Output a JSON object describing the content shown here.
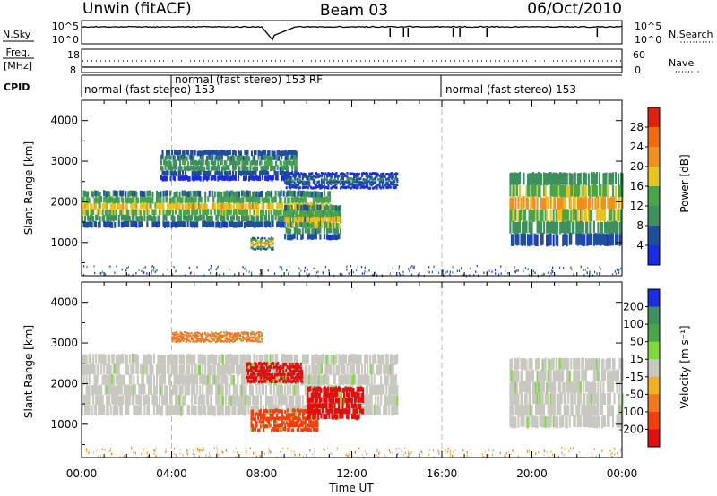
{
  "header": {
    "title_left": "Unwin (fitACF)",
    "title_center": "Beam 03",
    "title_right": "06/Oct/2010"
  },
  "noise_panel": {
    "left_label": "N.Sky",
    "right_label": "N.Search",
    "left_ticks": [
      "10^5",
      "10^0"
    ],
    "right_ticks": [
      "10^5",
      "10^0"
    ],
    "series": [
      {
        "name": "N.Sky",
        "line": "solid"
      },
      {
        "name": "N.Search",
        "line": "dotted"
      }
    ]
  },
  "freq_panel": {
    "left_label_1": "Freq.",
    "left_label_2": "[MHz]",
    "right_label": "Nave",
    "left_ticks": [
      "18",
      "8"
    ],
    "right_ticks": [
      "60",
      "0"
    ],
    "series": [
      {
        "name": "Freq.",
        "line": "solid",
        "value": 10.5
      },
      {
        "name": "Nave",
        "line": "dotted",
        "value": 30
      }
    ]
  },
  "cpid": {
    "label": "CPID",
    "segments": [
      {
        "label": "normal (fast stereo) 153",
        "start_hour": 0,
        "end_hour": 4.0
      },
      {
        "label": "normal (fast stereo) 153 RF",
        "start_hour": 4.0,
        "end_hour": 16.0
      },
      {
        "label": "normal (fast stereo) 153",
        "start_hour": 16.0,
        "end_hour": 24.0
      }
    ]
  },
  "chart_data": [
    {
      "type": "heatmap",
      "ylabel": "Slant Range [km]",
      "xlabel": "",
      "xlim_hours": [
        0,
        24
      ],
      "ylim": [
        180,
        4500
      ],
      "yticks": [
        1000,
        2000,
        3000,
        4000
      ],
      "ytick_labels": [
        "1000",
        "2000",
        "3000",
        "4000"
      ],
      "colorbar": {
        "label": "Power [dB]",
        "tick_labels": [
          "4",
          "8",
          "12",
          "16",
          "20",
          "24",
          "28"
        ],
        "colors": [
          "#1b2de0",
          "#1f4e9c",
          "#3f8f5f",
          "#4aa54a",
          "#e8c21e",
          "#f09020",
          "#f06a10",
          "#e02010"
        ]
      },
      "echo_bands": [
        {
          "start_hour": 0.0,
          "end_hour": 11.0,
          "range_start_km": 1350,
          "range_end_km": 2250,
          "peak_db": 22
        },
        {
          "start_hour": 3.5,
          "end_hour": 9.5,
          "range_start_km": 2500,
          "range_end_km": 3250,
          "peak_db": 14
        },
        {
          "start_hour": 7.5,
          "end_hour": 8.5,
          "range_start_km": 800,
          "range_end_km": 1100,
          "peak_db": 26
        },
        {
          "start_hour": 9.0,
          "end_hour": 11.5,
          "range_start_km": 1050,
          "range_end_km": 1900,
          "peak_db": 22
        },
        {
          "start_hour": 9.0,
          "end_hour": 14.0,
          "range_start_km": 2300,
          "range_end_km": 2700,
          "peak_db": 10
        },
        {
          "start_hour": 19.0,
          "end_hour": 24.0,
          "range_start_km": 900,
          "range_end_km": 2700,
          "peak_db": 24
        }
      ]
    },
    {
      "type": "heatmap",
      "ylabel": "Slant Range [km]",
      "xlabel": "Time UT",
      "xlim_hours": [
        0,
        24
      ],
      "ylim": [
        180,
        4500
      ],
      "yticks": [
        1000,
        2000,
        3000,
        4000
      ],
      "ytick_labels": [
        "1000",
        "2000",
        "3000",
        "4000"
      ],
      "xticks_hours": [
        0,
        4,
        8,
        12,
        16,
        20,
        24
      ],
      "xtick_labels": [
        "00:00",
        "04:00",
        "08:00",
        "12:00",
        "16:00",
        "20:00",
        "00:00"
      ],
      "colorbar": {
        "label": "Velocity [m s⁻¹]",
        "tick_labels": [
          "200",
          "100",
          "50",
          "15",
          "-15",
          "-50",
          "-100",
          "-200"
        ],
        "colors": [
          "#1b2de0",
          "#3f8f5f",
          "#4aa54a",
          "#80d840",
          "#c8c8c0",
          "#f0b020",
          "#f07820",
          "#f04010",
          "#e01010"
        ]
      },
      "echo_bands": [
        {
          "start_hour": 0.0,
          "end_hour": 14.0,
          "range_start_km": 1200,
          "range_end_km": 2700,
          "velocity": 0
        },
        {
          "start_hour": 4.0,
          "end_hour": 8.0,
          "range_start_km": 3000,
          "range_end_km": 3250,
          "velocity": -70
        },
        {
          "start_hour": 7.3,
          "end_hour": 9.8,
          "range_start_km": 2000,
          "range_end_km": 2500,
          "velocity": -200
        },
        {
          "start_hour": 7.5,
          "end_hour": 10.5,
          "range_start_km": 800,
          "range_end_km": 1350,
          "velocity": -110
        },
        {
          "start_hour": 10.0,
          "end_hour": 12.5,
          "range_start_km": 1100,
          "range_end_km": 1900,
          "velocity": -200
        },
        {
          "start_hour": 19.0,
          "end_hour": 24.0,
          "range_start_km": 900,
          "range_end_km": 2600,
          "velocity": 0
        }
      ]
    }
  ]
}
